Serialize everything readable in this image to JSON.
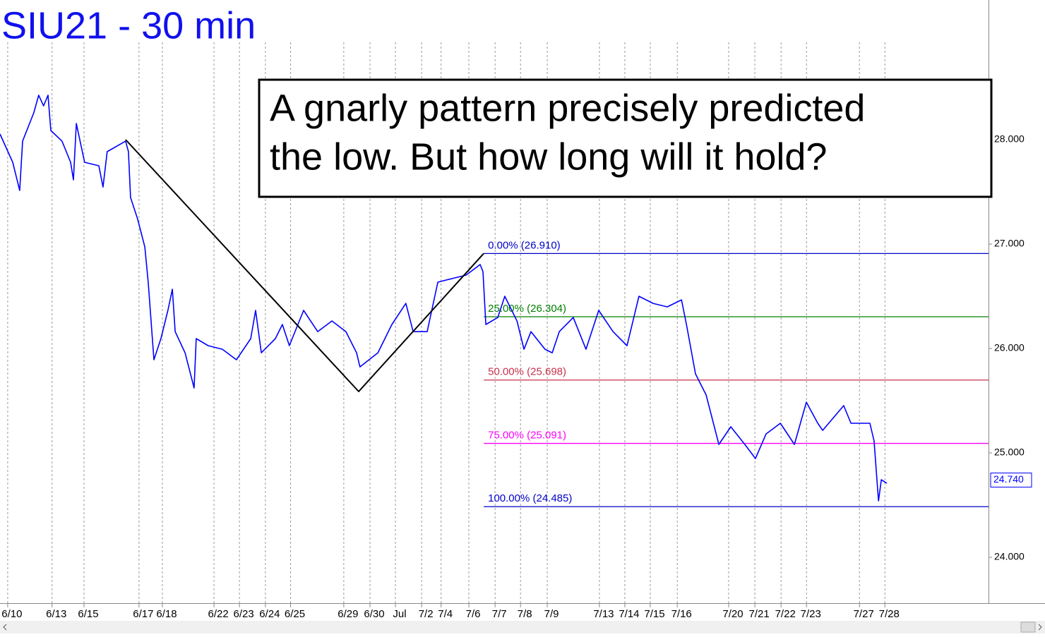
{
  "chart_data": {
    "type": "line",
    "title": "SIU21 - 30 min",
    "annotation": [
      "A gnarly pattern precisely predicted",
      "the low. But how long will it hold?"
    ],
    "xlim": [
      -0.46,
      37.63
    ],
    "xticks": [
      {
        "value": 0,
        "label": "6/10"
      },
      {
        "value": 1.71,
        "label": "6/13"
      },
      {
        "value": 2.94,
        "label": "6/15"
      },
      {
        "value": 5.06,
        "label": "6/17"
      },
      {
        "value": 5.96,
        "label": "6/18"
      },
      {
        "value": 7.95,
        "label": "6/22"
      },
      {
        "value": 8.93,
        "label": "6/23"
      },
      {
        "value": 9.93,
        "label": "6/24"
      },
      {
        "value": 10.9,
        "label": "6/25"
      },
      {
        "value": 12.95,
        "label": "6/29"
      },
      {
        "value": 13.96,
        "label": "6/30"
      },
      {
        "value": 14.94,
        "label": "Jul"
      },
      {
        "value": 15.95,
        "label": "7/2"
      },
      {
        "value": 16.7,
        "label": "7/4"
      },
      {
        "value": 17.77,
        "label": "7/6"
      },
      {
        "value": 18.78,
        "label": "7/7"
      },
      {
        "value": 19.76,
        "label": "7/8"
      },
      {
        "value": 20.79,
        "label": "7/9"
      },
      {
        "value": 22.8,
        "label": "7/13"
      },
      {
        "value": 23.78,
        "label": "7/14"
      },
      {
        "value": 24.76,
        "label": "7/15"
      },
      {
        "value": 25.8,
        "label": "7/16"
      },
      {
        "value": 27.78,
        "label": "7/20"
      },
      {
        "value": 28.79,
        "label": "7/21"
      },
      {
        "value": 29.8,
        "label": "7/22"
      },
      {
        "value": 30.78,
        "label": "7/23"
      },
      {
        "value": 32.82,
        "label": "7/27"
      },
      {
        "value": 33.8,
        "label": "7/28"
      }
    ],
    "ylim": [
      23.561,
      29.338
    ],
    "yticks": [
      {
        "value": 24,
        "label": "24.000"
      },
      {
        "value": 25,
        "label": "25.000"
      },
      {
        "value": 26,
        "label": "26.000"
      },
      {
        "value": 27,
        "label": "27.000"
      },
      {
        "value": 28,
        "label": "28.000"
      }
    ],
    "last_price": {
      "value": 24.74,
      "label": "24.740"
    },
    "grid": true,
    "series": [
      {
        "color": "#0000ff",
        "x": [
          -0.46,
          0.03,
          0.3,
          0.41,
          0.84,
          1.03,
          1.22,
          1.39,
          1.5,
          1.93,
          2.26,
          2.37,
          2.48,
          2.8,
          3.35,
          3.51,
          3.67,
          4.38,
          4.49,
          4.57,
          4.84,
          5.12,
          5.25,
          5.47,
          5.74,
          6.01,
          6.18,
          6.29,
          6.67,
          7.02,
          7.1,
          7.56,
          8.11,
          8.65,
          9.2,
          9.39,
          9.61,
          10.15,
          10.42,
          10.69,
          11.24,
          11.78,
          12.33,
          12.87,
          13.28,
          13.41,
          14.1,
          14.64,
          15.18,
          15.46,
          16.0,
          16.41,
          16.95,
          17.5,
          18.04,
          18.15,
          18.26,
          18.72,
          18.99,
          19.46,
          19.73,
          20.0,
          20.54,
          20.82,
          21.09,
          21.63,
          22.12,
          22.61,
          23.16,
          23.7,
          24.16,
          24.71,
          25.25,
          25.8,
          25.99,
          26.34,
          26.75,
          27.24,
          27.7,
          28.24,
          28.65,
          29.06,
          29.61,
          30.15,
          30.61,
          31.05,
          31.24,
          32.05,
          32.33,
          33.06,
          33.22,
          33.39,
          33.5,
          33.71
        ],
        "values": [
          28.054,
          27.784,
          27.514,
          27.986,
          28.257,
          28.426,
          28.324,
          28.426,
          28.088,
          27.986,
          27.784,
          27.615,
          28.155,
          27.784,
          27.75,
          27.547,
          27.885,
          27.986,
          27.885,
          27.446,
          27.243,
          26.973,
          26.635,
          25.892,
          26.095,
          26.365,
          26.568,
          26.162,
          25.959,
          25.622,
          26.095,
          26.027,
          25.993,
          25.892,
          26.095,
          26.365,
          25.959,
          26.095,
          26.23,
          26.027,
          26.365,
          26.162,
          26.264,
          26.162,
          25.959,
          25.824,
          25.959,
          26.23,
          26.432,
          26.162,
          26.162,
          26.635,
          26.669,
          26.703,
          26.804,
          26.736,
          26.23,
          26.297,
          26.5,
          26.264,
          25.993,
          26.162,
          25.993,
          25.959,
          26.162,
          26.297,
          25.993,
          26.365,
          26.162,
          26.027,
          26.5,
          26.432,
          26.399,
          26.466,
          26.23,
          25.757,
          25.554,
          25.081,
          25.25,
          25.081,
          24.946,
          25.182,
          25.284,
          25.081,
          25.486,
          25.284,
          25.216,
          25.453,
          25.284,
          25.284,
          25.115,
          24.541,
          24.743,
          24.709
        ]
      },
      {
        "color": "#000000",
        "x": [
          4.38,
          13.36,
          18.18
        ],
        "values": [
          28.0,
          25.588,
          26.91
        ]
      }
    ],
    "fib_start": 18.18,
    "fib_levels": [
      {
        "label": "0.00% (26.910)",
        "value": 26.91,
        "color": "#0000cc"
      },
      {
        "label": "25.00% (26.304)",
        "value": 26.304,
        "color": "#008000"
      },
      {
        "label": "50.00% (25.698)",
        "value": 25.698,
        "color": "#c8304a"
      },
      {
        "label": "75.00% (25.091)",
        "value": 25.091,
        "color": "#ff00ff"
      },
      {
        "label": "100.00% (24.485)",
        "value": 24.485,
        "color": "#0000cc"
      }
    ]
  }
}
